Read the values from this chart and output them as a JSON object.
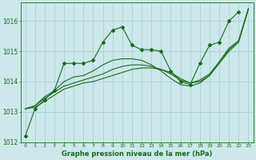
{
  "title": "Graphe pression niveau de la mer (hPa)",
  "bg_color": "#cce8ea",
  "grid_color": "#9ecece",
  "line_color": "#1a6b1a",
  "xlim": [
    -0.5,
    23.5
  ],
  "ylim": [
    1012,
    1016.6
  ],
  "yticks": [
    1012,
    1013,
    1014,
    1015,
    1016
  ],
  "xticks": [
    0,
    1,
    2,
    3,
    4,
    5,
    6,
    7,
    8,
    9,
    10,
    11,
    12,
    13,
    14,
    15,
    16,
    17,
    18,
    19,
    20,
    21,
    22,
    23
  ],
  "series": [
    {
      "x": [
        0,
        1,
        2,
        3,
        4,
        5,
        6,
        7,
        8,
        9,
        10,
        11,
        12,
        13,
        14,
        15,
        16,
        17,
        18,
        19,
        20,
        21,
        22
      ],
      "y": [
        1012.2,
        1013.1,
        1013.4,
        1013.7,
        1014.6,
        1014.6,
        1014.6,
        1014.7,
        1015.3,
        1015.7,
        1015.8,
        1015.2,
        1015.05,
        1015.05,
        1015.0,
        1014.35,
        1014.0,
        1013.9,
        1014.6,
        1015.2,
        1015.3,
        1016.0,
        1016.3
      ],
      "marker": true
    },
    {
      "x": [
        0,
        1,
        2,
        3,
        4,
        5,
        6,
        7,
        8,
        9,
        10,
        11,
        12,
        13,
        14,
        15,
        16,
        17,
        18,
        19,
        20,
        21,
        22,
        23
      ],
      "y": [
        1013.1,
        1013.2,
        1013.5,
        1013.7,
        1014.0,
        1014.15,
        1014.2,
        1014.35,
        1014.55,
        1014.7,
        1014.75,
        1014.75,
        1014.7,
        1014.55,
        1014.35,
        1014.1,
        1013.9,
        1013.85,
        1013.95,
        1014.2,
        1014.65,
        1015.1,
        1015.35,
        1016.4
      ],
      "marker": false
    },
    {
      "x": [
        0,
        1,
        2,
        3,
        4,
        5,
        6,
        7,
        8,
        9,
        10,
        11,
        12,
        13,
        14,
        15,
        16,
        17,
        18,
        19,
        20,
        21,
        22,
        23
      ],
      "y": [
        1013.1,
        1013.2,
        1013.45,
        1013.65,
        1013.85,
        1013.95,
        1014.05,
        1014.15,
        1014.25,
        1014.4,
        1014.5,
        1014.55,
        1014.55,
        1014.5,
        1014.4,
        1014.25,
        1014.05,
        1013.95,
        1014.05,
        1014.25,
        1014.65,
        1015.05,
        1015.35,
        1016.4
      ],
      "marker": false
    },
    {
      "x": [
        0,
        1,
        2,
        3,
        4,
        5,
        6,
        7,
        8,
        9,
        10,
        11,
        12,
        13,
        14,
        15,
        16,
        17,
        18,
        19,
        20,
        21,
        22,
        23
      ],
      "y": [
        1013.1,
        1013.15,
        1013.35,
        1013.55,
        1013.75,
        1013.85,
        1013.95,
        1014.0,
        1014.1,
        1014.2,
        1014.3,
        1014.4,
        1014.45,
        1014.45,
        1014.4,
        1014.3,
        1014.1,
        1013.95,
        1014.0,
        1014.2,
        1014.6,
        1015.0,
        1015.3,
        1016.4
      ],
      "marker": false
    }
  ]
}
